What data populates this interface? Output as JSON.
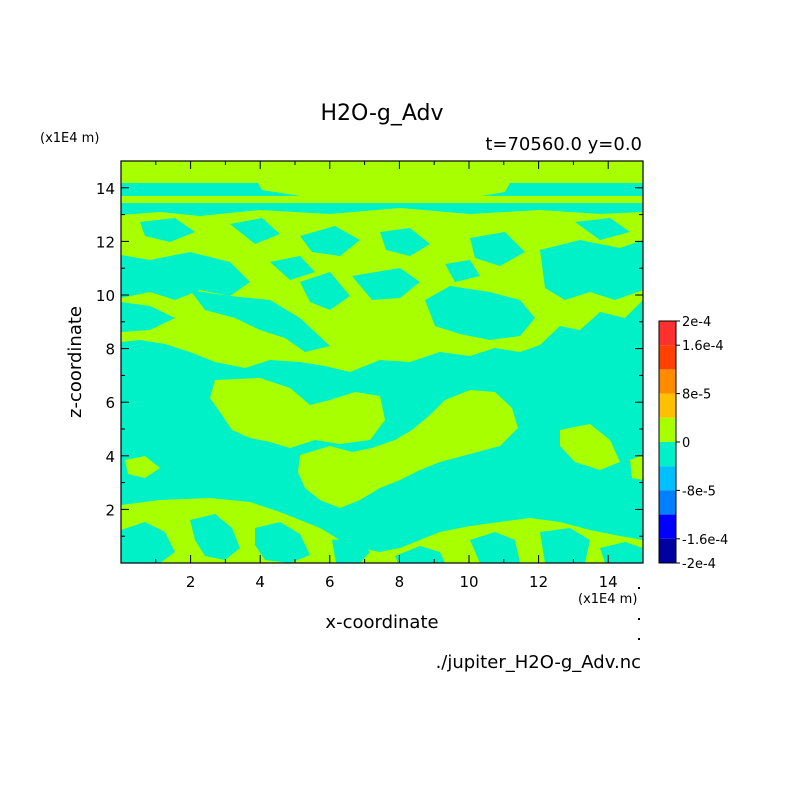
{
  "chart_data": {
    "type": "heatmap",
    "title": "H2O-g_Adv",
    "subtitle": "t=70560.0 y=0.0",
    "xlabel": "x-coordinate",
    "ylabel": "z-coordinate",
    "x_unit": "(x1E4 m)",
    "y_unit": "(x1E4 m)",
    "xlim": [
      0,
      15
    ],
    "ylim": [
      0,
      15
    ],
    "x_ticks": [
      2,
      4,
      6,
      8,
      10,
      12,
      14
    ],
    "y_ticks": [
      2,
      4,
      6,
      8,
      10,
      12,
      14
    ],
    "colorbar": {
      "range": [
        -0.0002,
        0.0002
      ],
      "labels": [
        "2e-4",
        "1.6e-4",
        "8e-5",
        "0",
        "-8e-5",
        "-1.6e-4",
        "-2e-4"
      ],
      "label_values": [
        0.0002,
        0.00016,
        8e-05,
        0,
        -8e-05,
        -0.00016,
        -0.0002
      ],
      "levels": [
        {
          "range": [
            0.00016,
            0.0002
          ],
          "color": "#ff3030"
        },
        {
          "range": [
            0.00012,
            0.00016
          ],
          "color": "#ff4000"
        },
        {
          "range": [
            8e-05,
            0.00012
          ],
          "color": "#ff8c00"
        },
        {
          "range": [
            4e-05,
            8e-05
          ],
          "color": "#ffc000"
        },
        {
          "range": [
            0,
            4e-05
          ],
          "color": "#a8ff00"
        },
        {
          "range": [
            -4e-05,
            0
          ],
          "color": "#00f0c8"
        },
        {
          "range": [
            -8e-05,
            -4e-05
          ],
          "color": "#00c0ff"
        },
        {
          "range": [
            -0.00012,
            -8e-05
          ],
          "color": "#0080ff"
        },
        {
          "range": [
            -0.00016,
            -0.00012
          ],
          "color": "#0000ff"
        },
        {
          "range": [
            -0.0002,
            -0.00016
          ],
          "color": "#0000a0"
        }
      ]
    },
    "field_levels_present": [
      "#a8ff00",
      "#00f0c8"
    ],
    "field_regions": [
      {
        "level": "0 to 4e-5",
        "z_range": [
          14.2,
          15
        ]
      },
      {
        "level": "-4e-5 to 0",
        "z_range": [
          13.6,
          14.2
        ],
        "x_range": [
          4.8,
          11.2
        ]
      },
      {
        "level": "0 to 4e-5",
        "z_range": [
          8,
          13.5
        ]
      },
      {
        "level": "-4e-5 to 0",
        "z_range": [
          0,
          8
        ]
      }
    ]
  },
  "footer": {
    "source_file": "./jupiter_H2O-g_Adv.nc"
  }
}
